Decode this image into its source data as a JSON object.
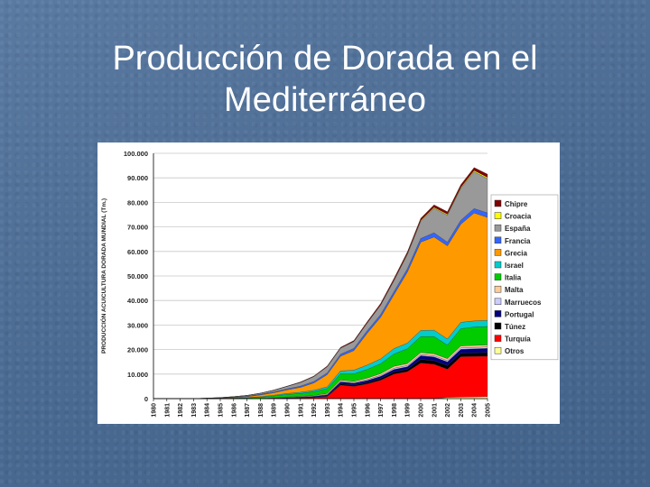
{
  "slide": {
    "title": "Producción de Dorada en el Mediterráneo"
  },
  "chart_data": {
    "type": "area",
    "stacked": true,
    "title": "",
    "xlabel": "",
    "ylabel": "PRODUCCIÓN ACUICULTURA DORADA MUNDIAL (Tm.)",
    "ylim": [
      0,
      100000
    ],
    "yticks": [
      "0",
      "10.000",
      "20.000",
      "30.000",
      "40.000",
      "50.000",
      "60.000",
      "70.000",
      "80.000",
      "90.000",
      "100.000"
    ],
    "ytick_values": [
      0,
      10000,
      20000,
      30000,
      40000,
      50000,
      60000,
      70000,
      80000,
      90000,
      100000
    ],
    "x": [
      "1980",
      "1981",
      "1982",
      "1983",
      "1984",
      "1985",
      "1986",
      "1987",
      "1988",
      "1989",
      "1990",
      "1991",
      "1992",
      "1993",
      "1994",
      "1995",
      "1996",
      "1997",
      "1998",
      "1999",
      "2000",
      "2001",
      "2002",
      "2003",
      "2004",
      "2005"
    ],
    "legend_position": "right",
    "grid": true,
    "series": [
      {
        "name": "Otros",
        "color": "#ffff99",
        "values": [
          0,
          0,
          0,
          0,
          0,
          0,
          0,
          0,
          0,
          0,
          0,
          0,
          0,
          0,
          0,
          0,
          0,
          0,
          0,
          0,
          0,
          0,
          500,
          600,
          700,
          800
        ]
      },
      {
        "name": "Turquía",
        "color": "#ff0000",
        "values": [
          0,
          0,
          0,
          0,
          0,
          0,
          0,
          0,
          0,
          100,
          200,
          300,
          400,
          800,
          5500,
          5000,
          6000,
          7500,
          10000,
          11000,
          14500,
          14000,
          11500,
          16500,
          16500,
          16500
        ]
      },
      {
        "name": "Túnez",
        "color": "#000000",
        "values": [
          0,
          0,
          0,
          0,
          0,
          0,
          0,
          0,
          0,
          0,
          0,
          0,
          100,
          200,
          500,
          500,
          600,
          700,
          900,
          1000,
          1500,
          1500,
          1500,
          1500,
          1500,
          1500
        ]
      },
      {
        "name": "Portugal",
        "color": "#000080",
        "values": [
          0,
          0,
          0,
          0,
          0,
          0,
          0,
          0,
          100,
          100,
          200,
          300,
          400,
          500,
          800,
          800,
          800,
          900,
          1000,
          1000,
          1500,
          1500,
          1500,
          1500,
          1600,
          1700
        ]
      },
      {
        "name": "Marruecos",
        "color": "#ccccff",
        "values": [
          0,
          0,
          0,
          0,
          0,
          0,
          0,
          0,
          0,
          0,
          100,
          100,
          100,
          200,
          300,
          300,
          400,
          400,
          500,
          500,
          500,
          500,
          500,
          600,
          600,
          600
        ]
      },
      {
        "name": "Malta",
        "color": "#ffcc99",
        "values": [
          0,
          0,
          0,
          0,
          0,
          0,
          0,
          0,
          0,
          100,
          200,
          200,
          300,
          400,
          500,
          500,
          600,
          700,
          800,
          800,
          800,
          800,
          800,
          800,
          800,
          800
        ]
      },
      {
        "name": "Italia",
        "color": "#00cc00",
        "values": [
          0,
          0,
          0,
          0,
          100,
          100,
          200,
          300,
          500,
          800,
          1000,
          1200,
          1500,
          2000,
          2500,
          3000,
          3500,
          4000,
          5000,
          6000,
          6500,
          7000,
          5500,
          7000,
          7500,
          7500
        ]
      },
      {
        "name": "Israel",
        "color": "#00cccc",
        "values": [
          0,
          0,
          0,
          0,
          0,
          0,
          100,
          100,
          200,
          300,
          400,
          500,
          600,
          700,
          1200,
          1500,
          1800,
          2000,
          2200,
          2300,
          2500,
          2600,
          2500,
          2600,
          2500,
          2500
        ]
      },
      {
        "name": "Grecia",
        "color": "#ff9900",
        "values": [
          0,
          0,
          0,
          0,
          0,
          100,
          200,
          400,
          700,
          1000,
          1500,
          2000,
          3000,
          5000,
          6000,
          8000,
          13000,
          17000,
          22000,
          29000,
          36000,
          38000,
          38000,
          40000,
          44000,
          42000
        ]
      },
      {
        "name": "Francia",
        "color": "#3366ff",
        "values": [
          0,
          0,
          0,
          0,
          0,
          100,
          100,
          200,
          300,
          300,
          400,
          500,
          600,
          700,
          800,
          900,
          1000,
          1100,
          1200,
          1300,
          1500,
          1700,
          1500,
          1600,
          1800,
          1800
        ]
      },
      {
        "name": "España",
        "color": "#999999",
        "values": [
          0,
          0,
          0,
          0,
          100,
          100,
          200,
          300,
          400,
          700,
          1000,
          1500,
          2000,
          2500,
          2500,
          2800,
          3200,
          3800,
          4500,
          5800,
          7000,
          10000,
          11000,
          13000,
          15000,
          14000
        ]
      },
      {
        "name": "Croacia",
        "color": "#ffff00",
        "values": [
          0,
          0,
          0,
          0,
          0,
          0,
          0,
          0,
          0,
          0,
          0,
          0,
          0,
          0,
          0,
          0,
          0,
          100,
          200,
          300,
          300,
          400,
          400,
          400,
          500,
          500
        ]
      },
      {
        "name": "Chipre",
        "color": "#800000",
        "values": [
          0,
          0,
          0,
          0,
          0,
          0,
          0,
          0,
          0,
          100,
          100,
          200,
          200,
          300,
          300,
          400,
          500,
          600,
          700,
          800,
          900,
          1000,
          1000,
          1100,
          1200,
          1300
        ]
      }
    ]
  }
}
